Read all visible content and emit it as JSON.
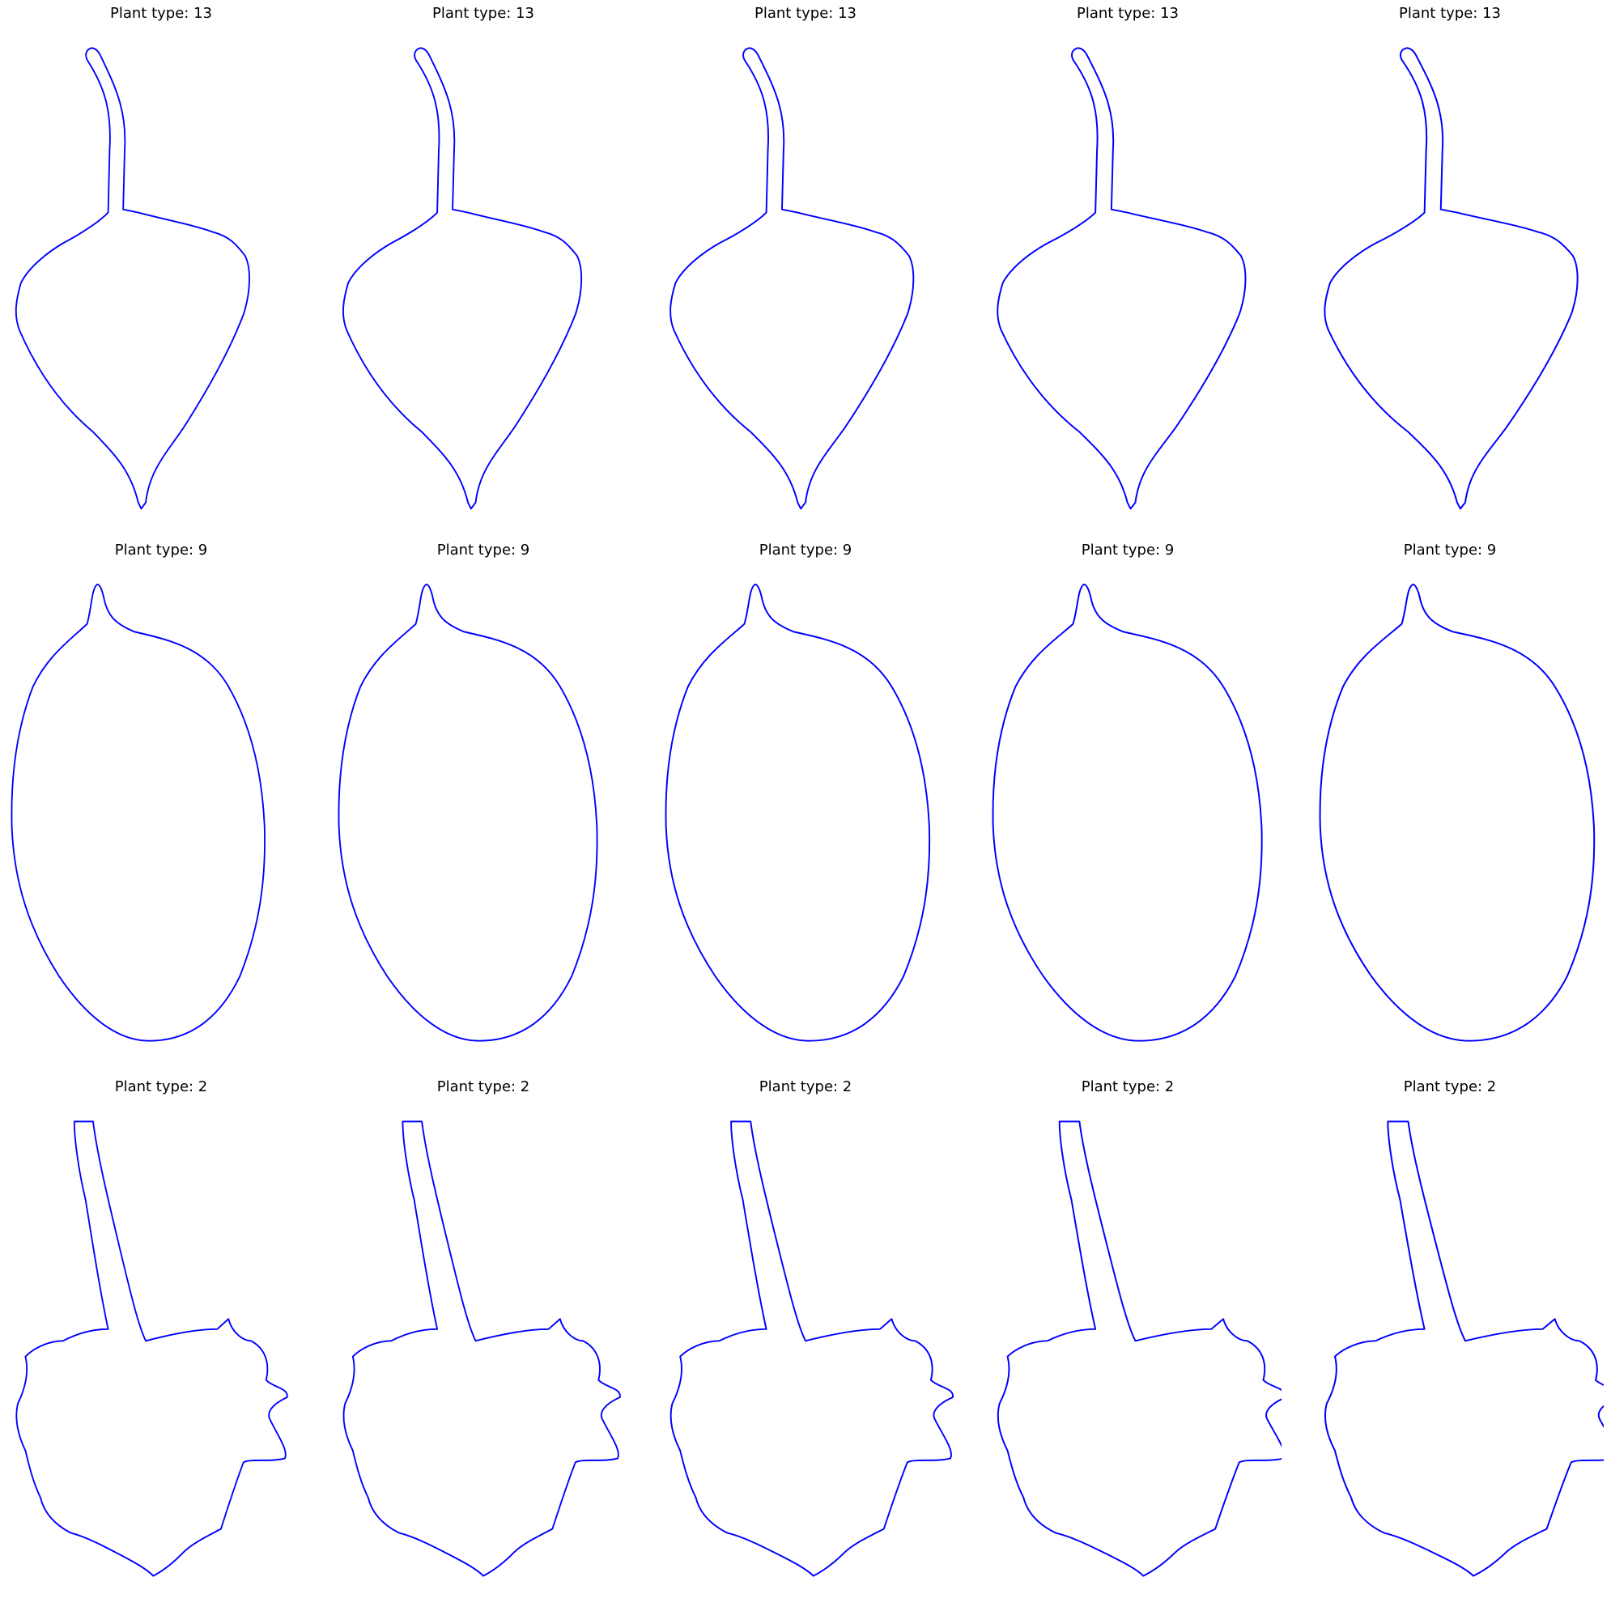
{
  "figure": {
    "outline_color": "#0000ff",
    "rows": [
      {
        "row_title": "Plant type: 13",
        "shape": "heart-leaf-with-stem",
        "titles": [
          "Plant type: 13",
          "Plant type: 13",
          "Plant type: 13",
          "Plant type: 13",
          "Plant type: 13"
        ]
      },
      {
        "row_title": "Plant type: 9",
        "shape": "oval-leaf",
        "titles": [
          "Plant type: 9",
          "Plant type: 9",
          "Plant type: 9",
          "Plant type: 9",
          "Plant type: 9"
        ]
      },
      {
        "row_title": "Plant type: 2",
        "shape": "lobed-leaf-with-stem",
        "titles": [
          "Plant type: 2",
          "Plant type: 2",
          "Plant type: 2",
          "Plant type: 2",
          "Plant type: 2"
        ]
      }
    ]
  }
}
